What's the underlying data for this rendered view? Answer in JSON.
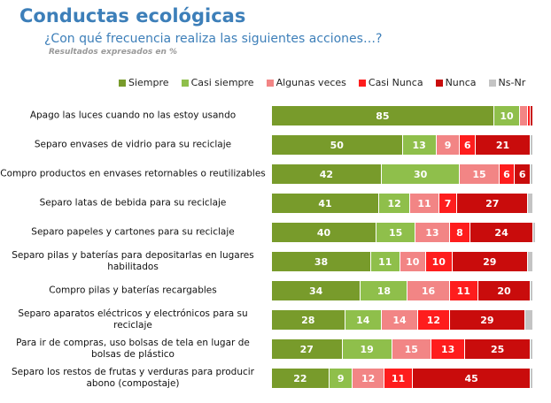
{
  "title": "Conductas ecológicas",
  "subtitle": "¿Con qué frecuencia realiza las siguientes acciones…?",
  "note": "Resultados expresados en %",
  "chart_data": {
    "type": "bar",
    "orientation": "horizontal-stacked",
    "xlim": [
      0,
      100
    ],
    "legend_position": "top",
    "categories": [
      "Apago las luces cuando no las estoy usando",
      "Separo envases de vidrio para su reciclaje",
      "Compro productos en envases retornables o reutilizables",
      "Separo latas de bebida para su reciclaje",
      "Separo papeles y cartones para su reciclaje",
      "Separo pilas y baterías para depositarlas en lugares habilitados",
      "Compro pilas y baterías recargables",
      "Separo aparatos eléctricos y electrónicos para su reciclaje",
      "Para ir de compras, uso bolsas de tela en lugar de bolsas de plástico",
      "Separo los restos de frutas y verduras para producir abono (compostaje)"
    ],
    "series": [
      {
        "name": "Siempre",
        "color": "#789b2b",
        "values": [
          85,
          50,
          42,
          41,
          40,
          38,
          34,
          28,
          27,
          22
        ]
      },
      {
        "name": "Casi siempre",
        "color": "#8fbf4b",
        "values": [
          10,
          13,
          30,
          12,
          15,
          11,
          18,
          14,
          19,
          9
        ]
      },
      {
        "name": "Algunas veces",
        "color": "#f28585",
        "values": [
          3,
          9,
          15,
          11,
          13,
          10,
          16,
          14,
          15,
          12
        ]
      },
      {
        "name": "Casi Nunca",
        "color": "#fe1d1d",
        "values": [
          1,
          6,
          6,
          7,
          8,
          10,
          11,
          12,
          13,
          11
        ]
      },
      {
        "name": "Nunca",
        "color": "#c90c0c",
        "values": [
          1,
          21,
          6,
          27,
          24,
          29,
          20,
          29,
          25,
          45
        ]
      },
      {
        "name": "Ns-Nr",
        "color": "#c4c4c4",
        "values": [
          0,
          1,
          1,
          2,
          1,
          2,
          1,
          3,
          1,
          1
        ]
      }
    ]
  }
}
